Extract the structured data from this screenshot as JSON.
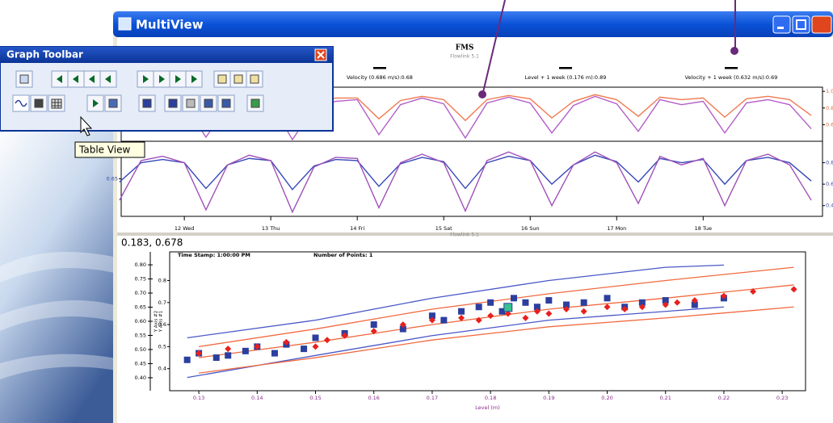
{
  "window": {
    "title": "MultiView"
  },
  "toolbar": {
    "title": "Graph Toolbar",
    "tooltip": "Table View"
  },
  "chart_data": [
    {
      "type": "line",
      "title": "FMS",
      "subtitle": "Flowlink 5.1",
      "legend_labels": [
        "Velocity (0.686 m/s):0.68",
        "Level + 1 week (0.176 m):0.89",
        "Velocity + 1 week (0.632 m/s):0.69"
      ],
      "x": [
        11.25,
        11.5,
        11.75,
        12,
        12.25,
        12.5,
        12.75,
        13,
        13.25,
        13.5,
        13.75,
        14,
        14.25,
        14.5,
        14.75,
        15,
        15.25,
        15.5,
        15.75,
        16,
        16.25,
        16.5,
        16.75,
        17,
        17.25,
        17.5,
        17.75,
        18,
        18.25,
        18.5,
        18.75,
        19,
        19.25
      ],
      "xlim": [
        11.27,
        19.38
      ],
      "xticks": [
        {
          "value": 12,
          "label": "12 Wed"
        },
        {
          "value": 13,
          "label": "13 Thu"
        },
        {
          "value": 14,
          "label": "14 Fri"
        },
        {
          "value": 15,
          "label": "15 Sat"
        },
        {
          "value": 16,
          "label": "16 Sun"
        },
        {
          "value": 17,
          "label": "17 Mon"
        },
        {
          "value": 18,
          "label": "18 Tue"
        }
      ],
      "panels": [
        {
          "ylim": [
            0.4,
            1.05
          ],
          "yticks": [
            0.6,
            0.8,
            {
              "value": 1,
              "label": "1.0"
            }
          ],
          "tick_color": "#e06a3c"
        },
        {
          "ylim": [
            0.3,
            1.0
          ],
          "yticks": [
            0.4,
            0.6,
            0.8
          ],
          "left_yticks": [
            0.65
          ],
          "tick_color": "#3a4aa8"
        }
      ],
      "series": [
        {
          "color": "#f07a50",
          "panel": 0,
          "values": [
            0.72,
            0.9,
            0.92,
            0.9,
            0.66,
            0.88,
            0.93,
            0.91,
            0.64,
            0.87,
            0.92,
            0.92,
            0.67,
            0.89,
            0.94,
            0.9,
            0.65,
            0.9,
            0.95,
            0.91,
            0.68,
            0.88,
            0.96,
            0.9,
            0.7,
            0.93,
            0.9,
            0.92,
            0.69,
            0.91,
            0.94,
            0.9,
            0.71
          ]
        },
        {
          "color": "#b45ec8",
          "panel": 0,
          "values": [
            0.55,
            0.86,
            0.9,
            0.85,
            0.45,
            0.82,
            0.9,
            0.86,
            0.42,
            0.8,
            0.88,
            0.9,
            0.48,
            0.84,
            0.92,
            0.85,
            0.44,
            0.86,
            0.93,
            0.86,
            0.5,
            0.83,
            0.94,
            0.85,
            0.52,
            0.9,
            0.84,
            0.88,
            0.5,
            0.86,
            0.9,
            0.84,
            0.55
          ]
        },
        {
          "color": "#3848b8",
          "panel": 1,
          "values": [
            0.62,
            0.8,
            0.83,
            0.8,
            0.56,
            0.78,
            0.84,
            0.82,
            0.55,
            0.77,
            0.83,
            0.82,
            0.58,
            0.79,
            0.85,
            0.81,
            0.56,
            0.8,
            0.86,
            0.82,
            0.6,
            0.78,
            0.87,
            0.81,
            0.62,
            0.84,
            0.8,
            0.83,
            0.6,
            0.82,
            0.85,
            0.8,
            0.63
          ]
        },
        {
          "color": "#a050b8",
          "panel": 1,
          "values": [
            0.45,
            0.82,
            0.86,
            0.8,
            0.36,
            0.78,
            0.87,
            0.82,
            0.34,
            0.76,
            0.85,
            0.84,
            0.38,
            0.8,
            0.88,
            0.8,
            0.35,
            0.82,
            0.9,
            0.82,
            0.4,
            0.78,
            0.9,
            0.8,
            0.42,
            0.86,
            0.78,
            0.84,
            0.4,
            0.82,
            0.88,
            0.78,
            0.45
          ]
        }
      ]
    },
    {
      "type": "scatter",
      "subtitle": "Flowlink 5.1",
      "readout": "0.183, 0.678",
      "annotations": [
        "Time Stamp: 1:00:00 PM",
        "Number of Points: 1"
      ],
      "xlabel": "Level (m)",
      "ylabel": "Y Axis #1",
      "y2label": "Y Axis #2",
      "xlim": [
        0.125,
        0.234
      ],
      "xticks": [
        0.13,
        0.14,
        0.15,
        0.16,
        0.17,
        0.18,
        0.19,
        {
          "value": 0.2,
          "label": "0.20"
        },
        0.21,
        0.22,
        0.23
      ],
      "ylim": [
        0.3,
        0.93
      ],
      "yticks": [
        0.4,
        0.5,
        0.6,
        0.7,
        0.8
      ],
      "y2lim": [
        0.354,
        0.846
      ],
      "y2ticks": [
        {
          "value": 0.4,
          "label": "0.40"
        },
        0.45,
        {
          "value": 0.5,
          "label": "0.50"
        },
        0.55,
        {
          "value": 0.6,
          "label": "0.60"
        },
        0.65,
        {
          "value": 0.7,
          "label": "0.70"
        },
        0.75,
        {
          "value": 0.8,
          "label": "0.80"
        }
      ],
      "series": [
        {
          "type": "line",
          "color": "#4a58c8",
          "x": [
            0.128,
            0.15,
            0.17,
            0.19,
            0.21,
            0.22
          ],
          "values": [
            0.54,
            0.62,
            0.72,
            0.8,
            0.86,
            0.87
          ]
        },
        {
          "type": "line",
          "color": "#4a58c8",
          "x": [
            0.128,
            0.15,
            0.17,
            0.19,
            0.21,
            0.22
          ],
          "values": [
            0.36,
            0.46,
            0.55,
            0.62,
            0.66,
            0.68
          ]
        },
        {
          "type": "line",
          "color": "#f06a40",
          "x": [
            0.13,
            0.15,
            0.17,
            0.19,
            0.21,
            0.232
          ],
          "values": [
            0.5,
            0.58,
            0.67,
            0.74,
            0.8,
            0.86
          ]
        },
        {
          "type": "line",
          "color": "#f06a40",
          "x": [
            0.13,
            0.15,
            0.17,
            0.19,
            0.21,
            0.232
          ],
          "values": [
            0.45,
            0.52,
            0.6,
            0.67,
            0.72,
            0.78
          ]
        },
        {
          "type": "line",
          "color": "#f06a40",
          "x": [
            0.13,
            0.15,
            0.17,
            0.19,
            0.21,
            0.232
          ],
          "values": [
            0.38,
            0.45,
            0.53,
            0.59,
            0.63,
            0.68
          ]
        },
        {
          "type": "scatter",
          "marker": "square",
          "color": "#2c3f9e",
          "x": [
            0.128,
            0.13,
            0.133,
            0.135,
            0.138,
            0.14,
            0.143,
            0.145,
            0.148,
            0.15,
            0.155,
            0.16,
            0.165,
            0.17,
            0.172,
            0.175,
            0.178,
            0.18,
            0.182,
            0.184,
            0.186,
            0.188,
            0.19,
            0.193,
            0.196,
            0.2,
            0.203,
            0.206,
            0.21,
            0.215,
            0.22
          ],
          "values": [
            0.44,
            0.47,
            0.45,
            0.46,
            0.48,
            0.5,
            0.47,
            0.51,
            0.49,
            0.54,
            0.56,
            0.6,
            0.58,
            0.64,
            0.62,
            0.66,
            0.68,
            0.7,
            0.66,
            0.72,
            0.7,
            0.68,
            0.71,
            0.69,
            0.7,
            0.72,
            0.68,
            0.7,
            0.71,
            0.69,
            0.72
          ]
        },
        {
          "type": "scatter",
          "marker": "diamond",
          "color": "#e8201c",
          "x": [
            0.13,
            0.135,
            0.14,
            0.145,
            0.15,
            0.152,
            0.155,
            0.16,
            0.165,
            0.17,
            0.175,
            0.178,
            0.18,
            0.183,
            0.186,
            0.188,
            0.19,
            0.193,
            0.196,
            0.2,
            0.203,
            0.206,
            0.21,
            0.212,
            0.215,
            0.22,
            0.225,
            0.232
          ],
          "values": [
            0.47,
            0.49,
            0.5,
            0.52,
            0.5,
            0.53,
            0.55,
            0.57,
            0.6,
            0.62,
            0.63,
            0.62,
            0.64,
            0.65,
            0.63,
            0.66,
            0.65,
            0.67,
            0.66,
            0.68,
            0.67,
            0.68,
            0.69,
            0.7,
            0.71,
            0.73,
            0.75,
            0.76
          ]
        }
      ],
      "highlight": {
        "x": 0.183,
        "y": 0.678,
        "color": "#38c090"
      }
    }
  ]
}
